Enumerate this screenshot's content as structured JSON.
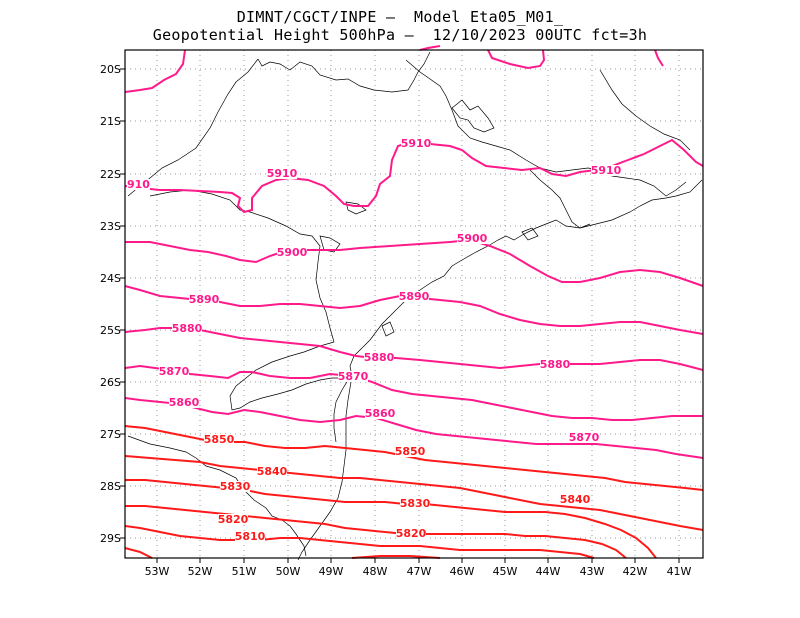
{
  "title": {
    "line1": "DIMNT/CGCT/INPE –  Model Eta05_M01_",
    "line2": "Geopotential Height 500hPa –  12/10/2023 00UTC fct=3h"
  },
  "axes": {
    "lon_ticks": [
      "53W",
      "52W",
      "51W",
      "50W",
      "49W",
      "48W",
      "47W",
      "46W",
      "45W",
      "44W",
      "43W",
      "42W",
      "41W"
    ],
    "lat_ticks": [
      "20S",
      "21S",
      "22S",
      "23S",
      "24S",
      "25S",
      "26S",
      "27S",
      "28S",
      "29S"
    ]
  },
  "colors": {
    "magenta": "#ff1a8c",
    "red": "#ff1a1a",
    "grid": "#9a9a9a",
    "coast": "#000000"
  },
  "contours": [
    {
      "value": 5910,
      "label": "5910",
      "labels": [
        "910",
        "5910",
        "5910",
        "5910"
      ]
    },
    {
      "value": 5900,
      "label": "5900",
      "labels": [
        "5900",
        "5900"
      ]
    },
    {
      "value": 5890,
      "label": "5890",
      "labels": [
        "5890",
        "5890"
      ]
    },
    {
      "value": 5880,
      "label": "5880",
      "labels": [
        "5880",
        "5880",
        "5880"
      ]
    },
    {
      "value": 5870,
      "label": "5870",
      "labels": [
        "5870",
        "5870",
        "5870"
      ]
    },
    {
      "value": 5860,
      "label": "5860",
      "labels": [
        "5860",
        "5860"
      ]
    },
    {
      "value": 5850,
      "label": "5850",
      "labels": [
        "5850",
        "5850"
      ]
    },
    {
      "value": 5840,
      "label": "5840",
      "labels": [
        "5840",
        "5840"
      ]
    },
    {
      "value": 5830,
      "label": "5830",
      "labels": [
        "5830",
        "5830"
      ]
    },
    {
      "value": 5820,
      "label": "5820",
      "labels": [
        "5820",
        "5820"
      ]
    },
    {
      "value": 5810,
      "label": "5810",
      "labels": [
        "5810"
      ]
    }
  ]
}
